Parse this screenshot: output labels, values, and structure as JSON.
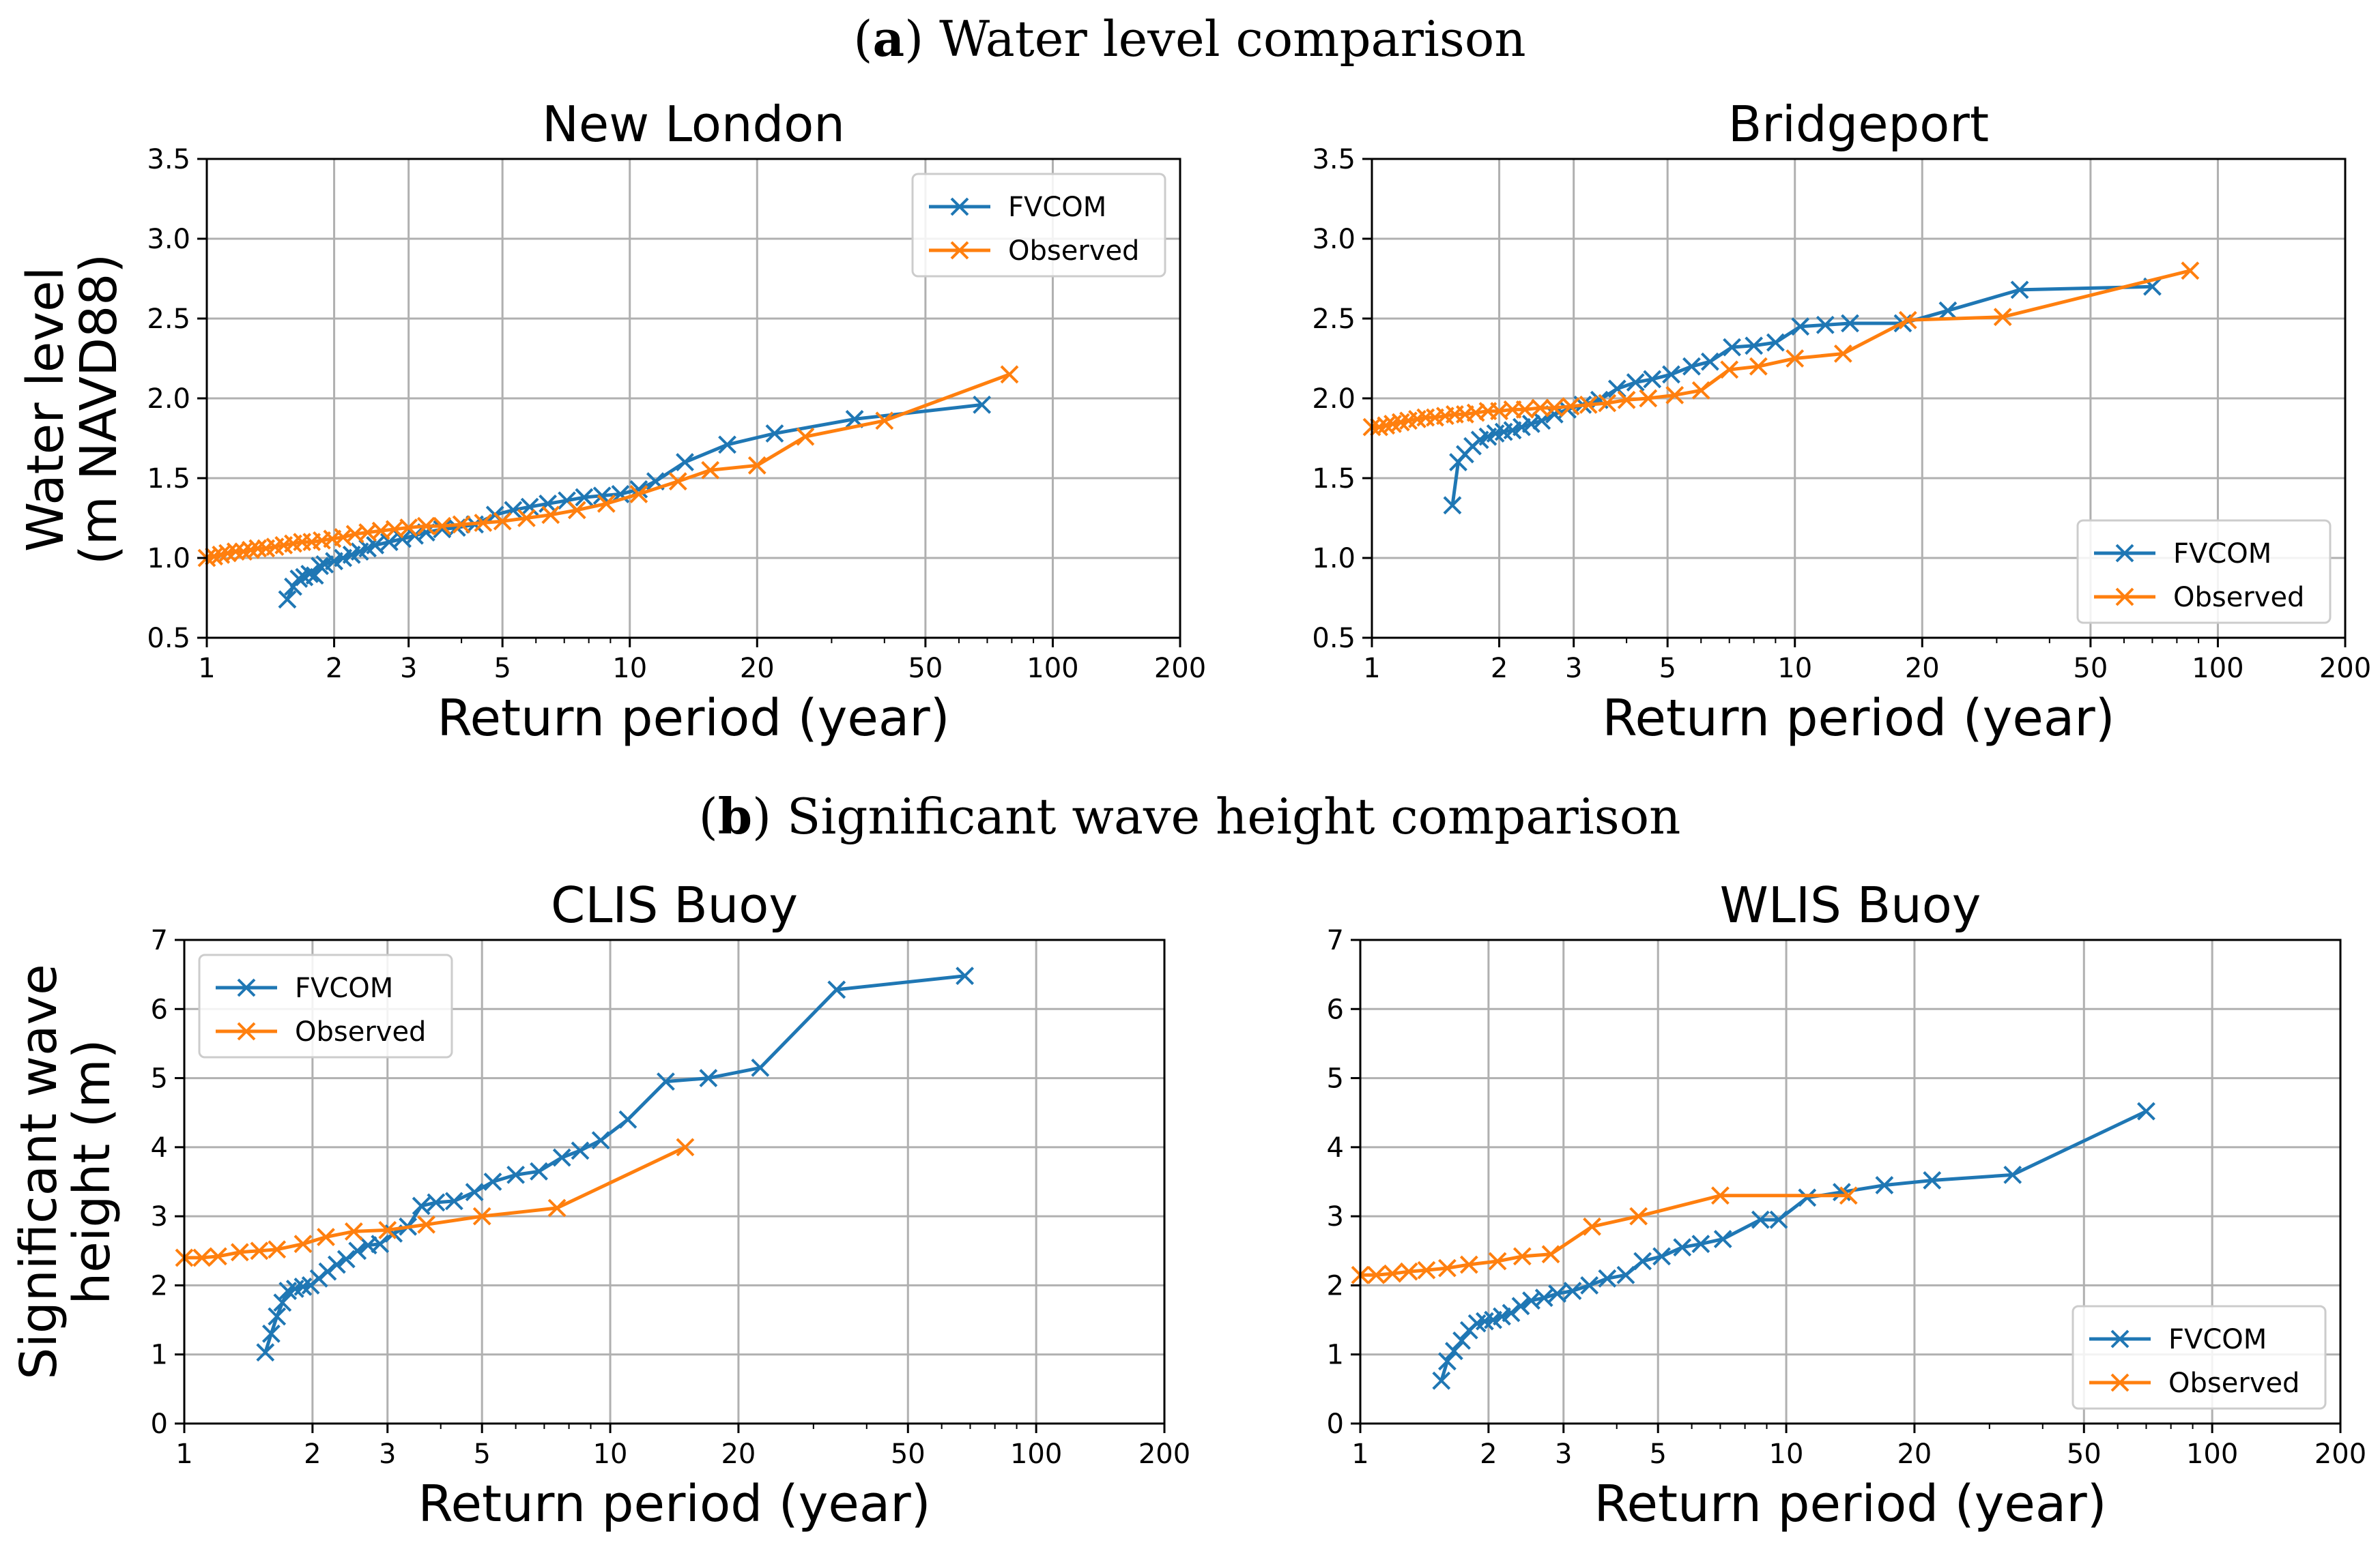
{
  "figure": {
    "section_a": {
      "letter": "a",
      "text": " Water level comparison"
    },
    "section_b": {
      "letter": "b",
      "text": " Significant wave height comparison"
    },
    "ylabel_a": [
      "Water level",
      "(m NAVD88)"
    ],
    "ylabel_b": [
      "Significant wave",
      "height (m)"
    ]
  },
  "colors": {
    "fvcom": "#1f77b4",
    "observed": "#ff7f0e",
    "grid": "#b0b0b0"
  },
  "chart_data": [
    {
      "id": "new-london",
      "type": "line",
      "title": "New London",
      "xlabel": "Return period (year)",
      "xscale": "log",
      "xlim": [
        1,
        200
      ],
      "ylim": [
        0.5,
        3.5
      ],
      "xticks": [
        1,
        2,
        3,
        5,
        10,
        20,
        50,
        100,
        200
      ],
      "xtick_labels": [
        "1",
        "2",
        "3",
        "5",
        "10",
        "20",
        "50",
        "100",
        "200"
      ],
      "yticks": [
        0.5,
        1.0,
        1.5,
        2.0,
        2.5,
        3.0,
        3.5
      ],
      "ytick_labels": [
        "0.5",
        "1.0",
        "1.5",
        "2.0",
        "2.5",
        "3.0",
        "3.5"
      ],
      "legend": "top-right",
      "series": [
        {
          "name": "FVCOM",
          "color": "#1f77b4",
          "x": [
            1.55,
            1.6,
            1.65,
            1.7,
            1.75,
            1.8,
            1.85,
            1.9,
            2.0,
            2.1,
            2.2,
            2.3,
            2.4,
            2.5,
            2.7,
            2.9,
            3.1,
            3.3,
            3.6,
            3.9,
            4.3,
            4.8,
            5.3,
            5.8,
            6.4,
            7.1,
            7.8,
            8.6,
            9.5,
            10.5,
            11.5,
            13.5,
            17,
            22,
            34,
            68
          ],
          "y": [
            0.74,
            0.82,
            0.87,
            0.88,
            0.9,
            0.89,
            0.95,
            0.96,
            0.98,
            1.0,
            1.02,
            1.04,
            1.06,
            1.08,
            1.1,
            1.12,
            1.14,
            1.16,
            1.18,
            1.19,
            1.21,
            1.27,
            1.3,
            1.32,
            1.34,
            1.36,
            1.38,
            1.39,
            1.4,
            1.43,
            1.48,
            1.6,
            1.71,
            1.78,
            1.87,
            1.96
          ]
        },
        {
          "name": "Observed",
          "color": "#ff7f0e",
          "x": [
            1.0,
            1.04,
            1.08,
            1.12,
            1.17,
            1.22,
            1.27,
            1.32,
            1.38,
            1.45,
            1.52,
            1.6,
            1.68,
            1.77,
            1.87,
            1.98,
            2.1,
            2.24,
            2.4,
            2.58,
            2.78,
            3.0,
            3.3,
            3.6,
            4.0,
            4.5,
            5.0,
            5.7,
            6.5,
            7.5,
            8.8,
            10.5,
            13,
            15.5,
            20,
            26,
            40,
            79
          ],
          "y": [
            1.0,
            1.01,
            1.02,
            1.03,
            1.04,
            1.04,
            1.05,
            1.06,
            1.06,
            1.07,
            1.08,
            1.09,
            1.1,
            1.1,
            1.11,
            1.12,
            1.13,
            1.15,
            1.16,
            1.17,
            1.18,
            1.19,
            1.2,
            1.2,
            1.21,
            1.22,
            1.23,
            1.25,
            1.27,
            1.3,
            1.34,
            1.4,
            1.48,
            1.55,
            1.58,
            1.76,
            1.86,
            2.15
          ]
        }
      ]
    },
    {
      "id": "bridgeport",
      "type": "line",
      "title": "Bridgeport",
      "xlabel": "Return period (year)",
      "xscale": "log",
      "xlim": [
        1,
        200
      ],
      "ylim": [
        0.5,
        3.5
      ],
      "xticks": [
        1,
        2,
        3,
        5,
        10,
        20,
        50,
        100,
        200
      ],
      "xtick_labels": [
        "1",
        "2",
        "3",
        "5",
        "10",
        "20",
        "50",
        "100",
        "200"
      ],
      "yticks": [
        0.5,
        1.0,
        1.5,
        2.0,
        2.5,
        3.0,
        3.5
      ],
      "ytick_labels": [
        "0.5",
        "1.0",
        "1.5",
        "2.0",
        "2.5",
        "3.0",
        "3.5"
      ],
      "legend": "bottom-right",
      "series": [
        {
          "name": "FVCOM",
          "color": "#1f77b4",
          "x": [
            1.55,
            1.6,
            1.66,
            1.73,
            1.8,
            1.88,
            1.96,
            2.05,
            2.15,
            2.26,
            2.38,
            2.52,
            2.7,
            2.9,
            3.15,
            3.45,
            3.8,
            4.2,
            4.6,
            5.1,
            5.7,
            6.3,
            7.1,
            8.0,
            9.0,
            10.3,
            11.8,
            13.5,
            18,
            23,
            34,
            70
          ],
          "y": [
            1.33,
            1.6,
            1.65,
            1.7,
            1.74,
            1.76,
            1.78,
            1.79,
            1.8,
            1.82,
            1.84,
            1.86,
            1.9,
            1.93,
            1.96,
            1.99,
            2.06,
            2.1,
            2.12,
            2.15,
            2.2,
            2.23,
            2.32,
            2.33,
            2.35,
            2.45,
            2.46,
            2.47,
            2.47,
            2.55,
            2.68,
            2.7
          ]
        },
        {
          "name": "Observed",
          "color": "#ff7f0e",
          "x": [
            1.0,
            1.04,
            1.08,
            1.12,
            1.17,
            1.22,
            1.28,
            1.34,
            1.41,
            1.49,
            1.57,
            1.66,
            1.76,
            1.88,
            2.0,
            2.15,
            2.3,
            2.5,
            2.7,
            2.95,
            3.25,
            3.6,
            4.0,
            4.5,
            5.2,
            6.0,
            7.0,
            8.2,
            10.0,
            13.0,
            18.5,
            31,
            86
          ],
          "y": [
            1.82,
            1.82,
            1.83,
            1.84,
            1.85,
            1.86,
            1.87,
            1.88,
            1.88,
            1.89,
            1.9,
            1.9,
            1.91,
            1.92,
            1.92,
            1.93,
            1.93,
            1.94,
            1.94,
            1.95,
            1.96,
            1.97,
            1.99,
            2.0,
            2.02,
            2.05,
            2.18,
            2.2,
            2.25,
            2.28,
            2.49,
            2.51,
            2.8
          ]
        }
      ]
    },
    {
      "id": "clis-buoy",
      "type": "line",
      "title": "CLIS Buoy",
      "xlabel": "Return period (year)",
      "xscale": "log",
      "xlim": [
        1,
        200
      ],
      "ylim": [
        0,
        7
      ],
      "xticks": [
        1,
        2,
        3,
        5,
        10,
        20,
        50,
        100,
        200
      ],
      "xtick_labels": [
        "1",
        "2",
        "3",
        "5",
        "10",
        "20",
        "50",
        "100",
        "200"
      ],
      "yticks": [
        0,
        1,
        2,
        3,
        4,
        5,
        6,
        7
      ],
      "ytick_labels": [
        "0",
        "1",
        "2",
        "3",
        "4",
        "5",
        "6",
        "7"
      ],
      "legend": "top-left",
      "series": [
        {
          "name": "FVCOM",
          "color": "#1f77b4",
          "x": [
            1.55,
            1.6,
            1.65,
            1.7,
            1.75,
            1.82,
            1.9,
            1.98,
            2.07,
            2.17,
            2.28,
            2.4,
            2.55,
            2.7,
            2.88,
            3.1,
            3.35,
            3.6,
            3.9,
            4.3,
            4.8,
            5.3,
            6.0,
            6.8,
            7.7,
            8.5,
            9.5,
            11,
            13.5,
            17,
            22.5,
            34,
            68
          ],
          "y": [
            1.03,
            1.3,
            1.55,
            1.75,
            1.92,
            1.95,
            1.98,
            2.0,
            2.1,
            2.2,
            2.3,
            2.38,
            2.5,
            2.58,
            2.6,
            2.75,
            2.85,
            3.15,
            3.2,
            3.22,
            3.35,
            3.5,
            3.6,
            3.65,
            3.85,
            3.95,
            4.1,
            4.4,
            4.95,
            5.0,
            5.15,
            6.28,
            6.48
          ]
        },
        {
          "name": "Observed",
          "color": "#ff7f0e",
          "x": [
            1.0,
            1.1,
            1.2,
            1.35,
            1.5,
            1.65,
            1.9,
            2.15,
            2.5,
            3.0,
            3.7,
            5.0,
            7.5,
            15
          ],
          "y": [
            2.4,
            2.4,
            2.42,
            2.48,
            2.5,
            2.52,
            2.6,
            2.7,
            2.78,
            2.8,
            2.88,
            3.0,
            3.12,
            4.0
          ]
        }
      ]
    },
    {
      "id": "wlis-buoy",
      "type": "line",
      "title": "WLIS Buoy",
      "xlabel": "Return period (year)",
      "xscale": "log",
      "xlim": [
        1,
        200
      ],
      "ylim": [
        0,
        7
      ],
      "xticks": [
        1,
        2,
        3,
        5,
        10,
        20,
        50,
        100,
        200
      ],
      "xtick_labels": [
        "1",
        "2",
        "3",
        "5",
        "10",
        "20",
        "50",
        "100",
        "200"
      ],
      "yticks": [
        0,
        1,
        2,
        3,
        4,
        5,
        6,
        7
      ],
      "ytick_labels": [
        "0",
        "1",
        "2",
        "3",
        "4",
        "5",
        "6",
        "7"
      ],
      "legend": "bottom-right",
      "series": [
        {
          "name": "FVCOM",
          "color": "#1f77b4",
          "x": [
            1.55,
            1.6,
            1.66,
            1.73,
            1.8,
            1.88,
            1.96,
            2.05,
            2.15,
            2.26,
            2.38,
            2.52,
            2.7,
            2.9,
            3.15,
            3.45,
            3.8,
            4.2,
            4.6,
            5.1,
            5.7,
            6.3,
            7.1,
            8.7,
            9.6,
            11.2,
            13.5,
            17,
            22,
            34,
            70
          ],
          "y": [
            0.62,
            0.9,
            1.05,
            1.2,
            1.35,
            1.45,
            1.48,
            1.5,
            1.55,
            1.6,
            1.7,
            1.78,
            1.82,
            1.88,
            1.92,
            2.0,
            2.1,
            2.15,
            2.35,
            2.42,
            2.55,
            2.6,
            2.67,
            2.95,
            2.95,
            3.27,
            3.35,
            3.45,
            3.52,
            3.6,
            4.52
          ]
        },
        {
          "name": "Observed",
          "color": "#ff7f0e",
          "x": [
            1.0,
            1.09,
            1.19,
            1.3,
            1.43,
            1.6,
            1.8,
            2.1,
            2.4,
            2.8,
            3.5,
            4.5,
            7.0,
            14
          ],
          "y": [
            2.15,
            2.15,
            2.17,
            2.2,
            2.22,
            2.25,
            2.3,
            2.35,
            2.42,
            2.45,
            2.85,
            3.0,
            3.3,
            3.3
          ]
        }
      ]
    }
  ]
}
